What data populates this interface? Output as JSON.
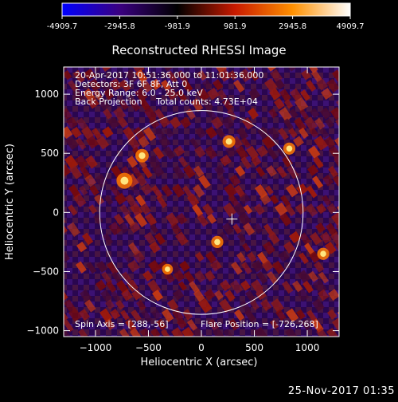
{
  "colorbar": {
    "ticks": [
      "-4909.7",
      "-2945.8",
      "-981.9",
      "981.9",
      "2945.8",
      "4909.7"
    ],
    "colormap": [
      "#0000ff",
      "#3a0080",
      "#000000",
      "#c81a00",
      "#ff9000",
      "#ffffff"
    ]
  },
  "plot": {
    "title": "Reconstructed RHESSI Image",
    "info_lines": [
      "20-Apr-2017 10:51:36.000 to 11:01:36.000",
      "Detectors: 3F 6F 8F, Att 0",
      "Energy Range: 6.0 - 25.0 keV",
      "Back Projection     Total counts: 4.73E+04"
    ],
    "spin_axis": "Spin Axis = [288,-56]",
    "flare_position": "Flare Position = [-726,268]",
    "x_axis": {
      "label": "Heliocentric X (arcsec)",
      "range": [
        -1300,
        1300
      ],
      "ticks": [
        -1000,
        -500,
        0,
        500,
        1000
      ],
      "tick_labels": [
        "−1000",
        "−500",
        "0",
        "500",
        "1000"
      ]
    },
    "y_axis": {
      "label": "Heliocentric Y (arcsec)",
      "range": [
        -1050,
        1230
      ],
      "ticks": [
        -1000,
        -500,
        0,
        500,
        1000
      ],
      "tick_labels": [
        "−1000",
        "−500",
        "0",
        "500",
        "1000"
      ]
    },
    "solar_limb_radius_arcsec": 960,
    "crosshair_at": [
      288,
      -56
    ],
    "bright_sources": [
      {
        "x": -726,
        "y": 268,
        "level": 1.0
      },
      {
        "x": -560,
        "y": 480,
        "level": 0.8
      },
      {
        "x": 260,
        "y": 600,
        "level": 0.75
      },
      {
        "x": 830,
        "y": 540,
        "level": 0.7
      },
      {
        "x": 150,
        "y": -250,
        "level": 0.7
      },
      {
        "x": -320,
        "y": -480,
        "level": 0.6
      },
      {
        "x": 1150,
        "y": -350,
        "level": 0.7
      }
    ]
  },
  "footer": {
    "timestamp": "25-Nov-2017 01:35"
  }
}
